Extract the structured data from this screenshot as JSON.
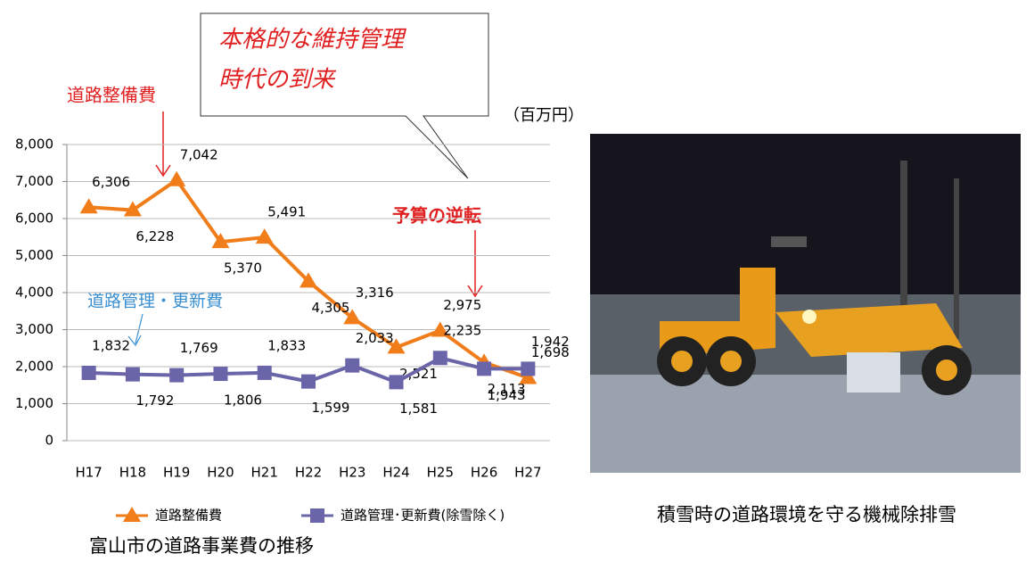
{
  "chart_data": {
    "type": "line",
    "title": "富山市の道路事業費の推移",
    "y_unit": "（百万円）",
    "categories": [
      "H17",
      "H18",
      "H19",
      "H20",
      "H21",
      "H22",
      "H23",
      "H24",
      "H25",
      "H26",
      "H27"
    ],
    "series": [
      {
        "name": "道路整備費",
        "color": "#f07d1a",
        "marker": "triangle",
        "values": [
          6306,
          6228,
          7042,
          5370,
          5491,
          4305,
          3316,
          2521,
          2975,
          2113,
          1698
        ],
        "value_labels": [
          "6,306",
          "6,228",
          "7,042",
          "5,370",
          "5,491",
          "4,305",
          "3,316",
          "2,521",
          "2,975",
          "2,113",
          "1,698"
        ]
      },
      {
        "name": "道路管理･更新費(除雪除く)",
        "color": "#6a64a8",
        "marker": "square",
        "values": [
          1832,
          1792,
          1769,
          1806,
          1833,
          1599,
          2033,
          1581,
          2235,
          1943,
          1942
        ],
        "value_labels": [
          "1,832",
          "1,792",
          "1,769",
          "1,806",
          "1,833",
          "1,599",
          "2,033",
          "1,581",
          "2,235",
          "1,943",
          "1,942"
        ]
      }
    ],
    "ylim": [
      0,
      8000
    ],
    "yticks": [
      0,
      {
        "value": 1000,
        "label": "1,000"
      },
      {
        "value": 2000,
        "label": "2,000"
      },
      {
        "value": 3000,
        "label": "3,000"
      },
      {
        "value": 4000,
        "label": "4,000"
      },
      {
        "value": 5000,
        "label": "5,000"
      },
      {
        "value": 6000,
        "label": "6,000"
      },
      {
        "value": 7000,
        "label": "7,000"
      },
      {
        "value": 8000,
        "label": "8,000"
      }
    ],
    "grid": true,
    "legend": "bottom",
    "annotations": [
      "道路整備費",
      "本格的な維持管理",
      "時代の到来",
      "予算の逆転",
      "道路管理・更新費"
    ]
  },
  "photo": {
    "caption": "積雪時の道路環境を守る機械除排雪"
  }
}
